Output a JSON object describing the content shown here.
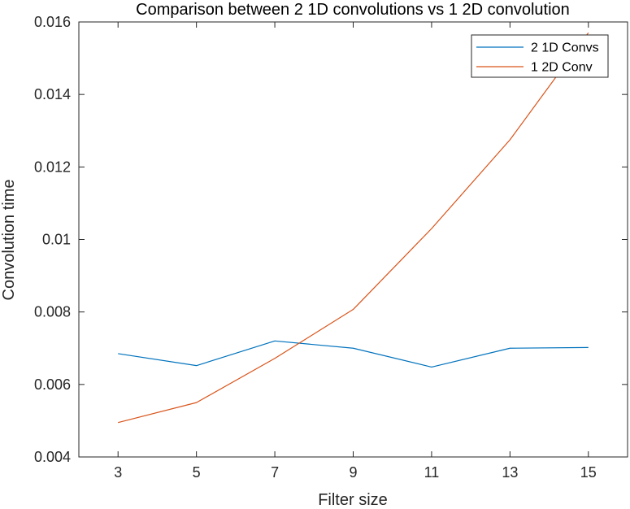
{
  "chart_data": {
    "type": "line",
    "title": "Comparison between 2 1D convolutions vs 1 2D convolution",
    "xlabel": "Filter size",
    "ylabel": "Convolution time",
    "x": [
      3,
      5,
      7,
      9,
      11,
      13,
      15
    ],
    "xlim": [
      2,
      16
    ],
    "ylim": [
      0.004,
      0.016
    ],
    "x_ticks": [
      "3",
      "5",
      "7",
      "9",
      "11",
      "13",
      "15"
    ],
    "y_ticks": [
      "0.004",
      "0.006",
      "0.008",
      "0.01",
      "0.012",
      "0.014",
      "0.016"
    ],
    "y_tick_values": [
      0.004,
      0.006,
      0.008,
      0.01,
      0.012,
      0.014,
      0.016
    ],
    "grid": false,
    "legend_position": "top-right",
    "series": [
      {
        "name": "2 1D Convs",
        "color": "#0072BD",
        "values": [
          0.00685,
          0.00652,
          0.0072,
          0.007,
          0.00648,
          0.007,
          0.00702
        ]
      },
      {
        "name": "1 2D Conv",
        "color": "#D95319",
        "values": [
          0.00495,
          0.0055,
          0.00672,
          0.00807,
          0.0103,
          0.01275,
          0.0157
        ]
      }
    ]
  }
}
